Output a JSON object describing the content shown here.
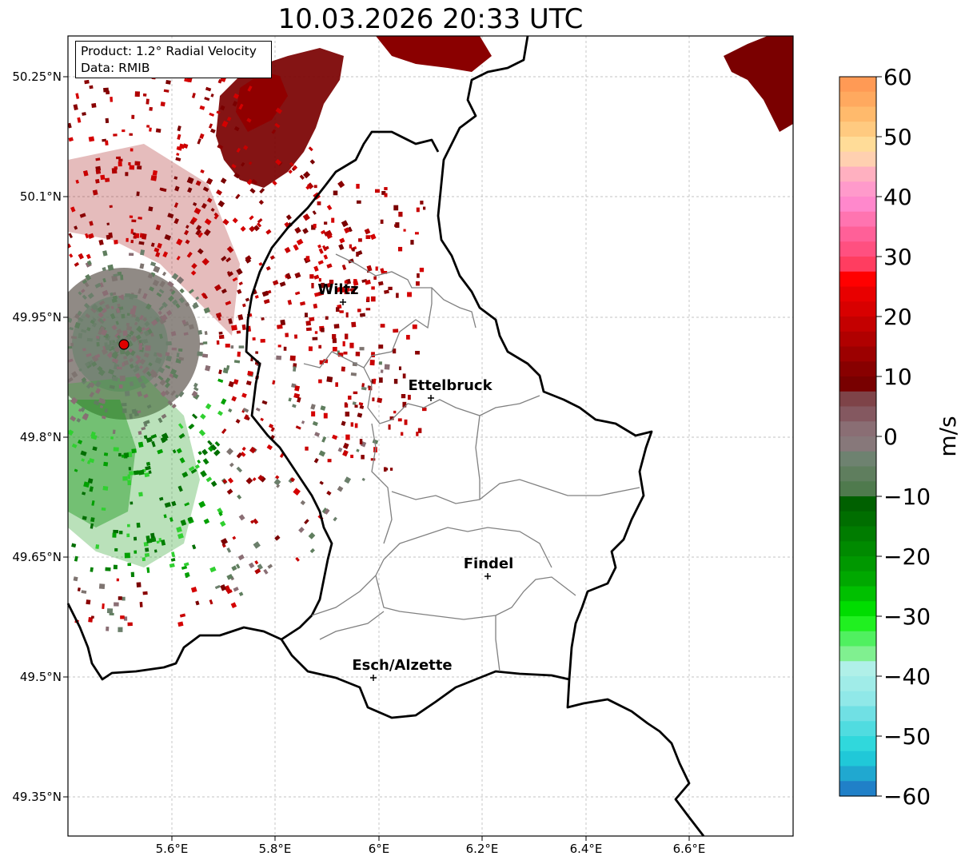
{
  "title": "10.03.2026 20:33 UTC",
  "info": {
    "product": "Product: 1.2° Radial Velocity",
    "data": "Data: RMIB"
  },
  "axes": {
    "lat_labels": [
      "50.25°N",
      "50.1°N",
      "49.95°N",
      "49.8°N",
      "49.65°N",
      "49.5°N",
      "49.35°N"
    ],
    "lon_labels": [
      "5.6°E",
      "5.8°E",
      "6°E",
      "6.2°E",
      "6.4°E",
      "6.6°E"
    ]
  },
  "cities": [
    {
      "name": "Wiltz"
    },
    {
      "name": "Ettelbruck"
    },
    {
      "name": "Findel"
    },
    {
      "name": "Esch/Alzette"
    }
  ],
  "colorbar": {
    "unit": "m/s",
    "min": -60,
    "max": 60,
    "ticks": [
      "60",
      "50",
      "40",
      "30",
      "20",
      "10",
      "0",
      "−10",
      "−20",
      "−30",
      "−40",
      "−50",
      "−60"
    ]
  },
  "radar_site": {
    "color": "#e00000"
  }
}
